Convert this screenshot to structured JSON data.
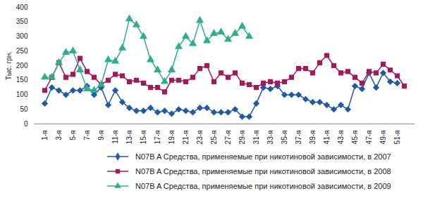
{
  "chart_data": {
    "type": "line",
    "y_label": "Тыс. грн.",
    "categories": [
      "1-я",
      null,
      "3-я",
      null,
      "5-я",
      null,
      "7-я",
      null,
      "9-я",
      null,
      "11-я",
      null,
      "13-я",
      null,
      "15-я",
      null,
      "17-я",
      null,
      "19-я",
      null,
      "21-я",
      null,
      "23-я",
      null,
      "25-я",
      null,
      "27-я",
      null,
      "29-я",
      null,
      "31-я",
      null,
      "33-я",
      null,
      "35-я",
      null,
      "37-я",
      null,
      "39-я",
      null,
      "41-я",
      null,
      "43-я",
      null,
      "45-я",
      null,
      "47-я",
      null,
      "49-я",
      null,
      "51-я",
      null
    ],
    "series": [
      {
        "name": "N07B A Средства, применяемые при никотиновой зависимости, в 2007",
        "color": "#1f5aa6",
        "marker": "diamond",
        "values": [
          70,
          125,
          115,
          100,
          115,
          115,
          130,
          100,
          125,
          65,
          115,
          75,
          55,
          45,
          45,
          55,
          40,
          45,
          35,
          50,
          45,
          40,
          55,
          55,
          40,
          40,
          40,
          50,
          25,
          25,
          70,
          125,
          120,
          130,
          100,
          100,
          100,
          85,
          75,
          75,
          65,
          50,
          65,
          50,
          130,
          120,
          175,
          125,
          175,
          145,
          140,
          null
        ]
      },
      {
        "name": "N07B A Средства, применяемые при никотиновой зависимости, в 2008",
        "color": "#a3195b",
        "marker": "square",
        "values": [
          115,
          160,
          210,
          160,
          170,
          225,
          180,
          160,
          135,
          150,
          170,
          165,
          145,
          150,
          140,
          125,
          125,
          110,
          150,
          150,
          145,
          160,
          190,
          200,
          145,
          175,
          160,
          175,
          140,
          135,
          125,
          140,
          145,
          140,
          145,
          160,
          190,
          190,
          175,
          210,
          235,
          200,
          175,
          180,
          160,
          140,
          180,
          175,
          205,
          185,
          165,
          130
        ]
      },
      {
        "name": "N07B A Средства, применяемые при никотиновой зависимости, в 2009",
        "color": "#2bb08f",
        "marker": "triangle",
        "values": [
          160,
          160,
          210,
          245,
          250,
          185,
          120,
          115,
          135,
          220,
          215,
          260,
          360,
          340,
          300,
          220,
          185,
          145,
          185,
          265,
          300,
          275,
          355,
          285,
          310,
          315,
          290,
          310,
          335,
          300,
          null,
          null,
          null,
          null,
          null,
          null,
          null,
          null,
          null,
          null,
          null,
          null,
          null,
          null,
          null,
          null,
          null,
          null,
          null,
          null,
          null,
          null
        ]
      }
    ],
    "ylim": [
      0,
      400
    ],
    "yticks": [
      0,
      50,
      100,
      150,
      200,
      250,
      300,
      350,
      400
    ],
    "grid": false,
    "legend": "bottom"
  }
}
